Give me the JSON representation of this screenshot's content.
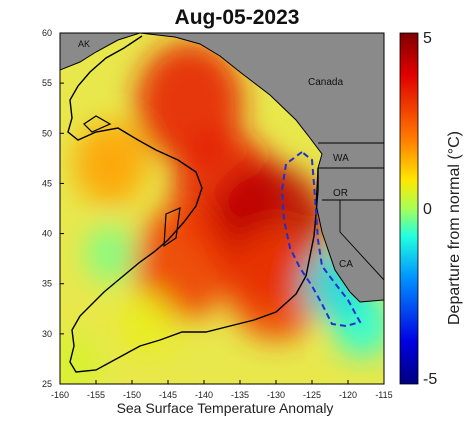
{
  "title": "Aug-05-2023",
  "xlabel": "Sea Surface Temperature Anomaly",
  "colorbar": {
    "label": "Departure from normal (°C)",
    "ticks": [
      "5",
      "0",
      "-5"
    ],
    "range": [
      -5,
      5
    ],
    "colormap": "jet"
  },
  "axes": {
    "lon_range": [
      -160,
      -115
    ],
    "lat_range": [
      25,
      60
    ],
    "lon_ticks": [
      "-160",
      "-155",
      "-150",
      "-145",
      "-140",
      "-135",
      "-130",
      "-125",
      "-120",
      "-115"
    ],
    "lat_ticks": [
      "60",
      "55",
      "50",
      "45",
      "40",
      "35",
      "30",
      "25"
    ]
  },
  "land_labels": [
    "AK",
    "Canada",
    "WA",
    "OR",
    "CA"
  ],
  "colors": {
    "land": "#888888",
    "contour": "#000000",
    "dashed_region": "#1f2fd0",
    "hot": "#d7301f",
    "warm": "#f58a2a",
    "neutral": "#e6e84a",
    "cool": "#8fd8a8"
  },
  "chart_data": {
    "type": "heatmap",
    "title": "Aug-05-2023",
    "xlabel": "Sea Surface Temperature Anomaly",
    "colorbar_label": "Departure from normal (°C)",
    "xlim": [
      -160,
      -115
    ],
    "ylim": [
      25,
      60
    ],
    "zlim": [
      -5,
      5
    ],
    "grid": false,
    "hotspots": [
      {
        "lon": -142,
        "lat": 53,
        "anomaly": 3.5
      },
      {
        "lon": -137,
        "lat": 44,
        "anomaly": 3.5
      },
      {
        "lon": -131,
        "lat": 40,
        "anomaly": 4.3
      },
      {
        "lon": -143,
        "lat": 37,
        "anomaly": 3
      },
      {
        "lon": -130,
        "lat": 35,
        "anomaly": 3
      },
      {
        "lon": -153,
        "lat": 47,
        "anomaly": 1.6
      },
      {
        "lon": -153,
        "lat": 38,
        "anomaly": -0.3
      },
      {
        "lon": -148,
        "lat": 31,
        "anomaly": 0.6
      },
      {
        "lon": -118,
        "lat": 31,
        "anomaly": -0.8
      },
      {
        "lon": -122,
        "lat": 35,
        "anomaly": -1.2
      },
      {
        "lon": -158,
        "lat": 27,
        "anomaly": 0.4
      }
    ]
  }
}
